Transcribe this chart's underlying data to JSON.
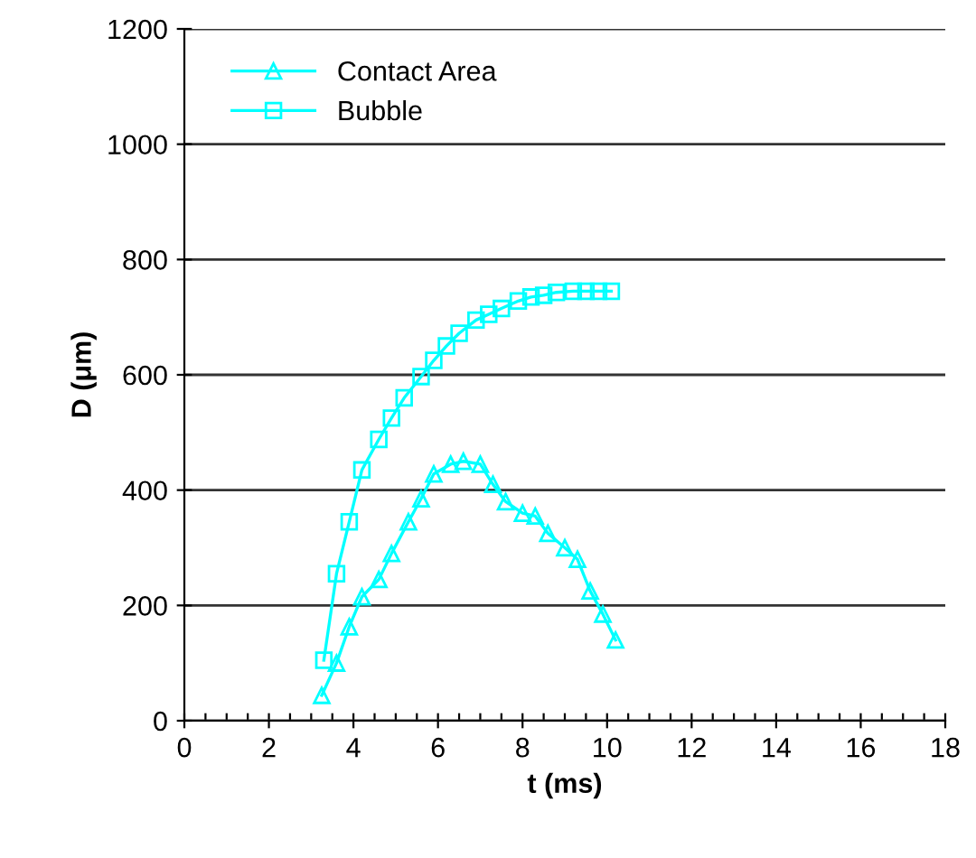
{
  "chart_data": {
    "type": "line",
    "xlabel": "t (ms)",
    "ylabel": "D (μm)",
    "xlim": [
      0,
      18
    ],
    "xticks": [
      0,
      2,
      4,
      6,
      8,
      10,
      12,
      14,
      16,
      18
    ],
    "ylim": [
      0,
      1200
    ],
    "yticks": [
      0,
      200,
      400,
      600,
      800,
      1000,
      1200
    ],
    "grid": "y",
    "legend": "top left",
    "line_style": "solid",
    "series": [
      {
        "name": "Contact Area",
        "color": "#00ffff",
        "marker": "triangle",
        "x": [
          3.25,
          3.6,
          3.9,
          4.2,
          4.6,
          4.9,
          5.3,
          5.6,
          5.9,
          6.3,
          6.6,
          7.0,
          7.3,
          7.6,
          8.0,
          8.3,
          8.6,
          9.0,
          9.3,
          9.6,
          9.9,
          10.2
        ],
        "values": [
          44,
          100,
          163,
          215,
          245,
          290,
          345,
          385,
          428,
          445,
          450,
          445,
          410,
          380,
          360,
          355,
          325,
          300,
          280,
          225,
          185,
          140
        ]
      },
      {
        "name": "Bubble",
        "color": "#00ffff",
        "marker": "square",
        "x": [
          3.3,
          3.6,
          3.9,
          4.2,
          4.6,
          4.9,
          5.2,
          5.6,
          5.9,
          6.2,
          6.5,
          6.9,
          7.2,
          7.5,
          7.9,
          8.2,
          8.5,
          8.8,
          9.2,
          9.5,
          9.8,
          10.1
        ],
        "values": [
          105,
          255,
          345,
          435,
          488,
          525,
          560,
          597,
          625,
          650,
          672,
          695,
          705,
          715,
          728,
          735,
          738,
          743,
          745,
          745,
          745,
          745
        ]
      }
    ]
  }
}
